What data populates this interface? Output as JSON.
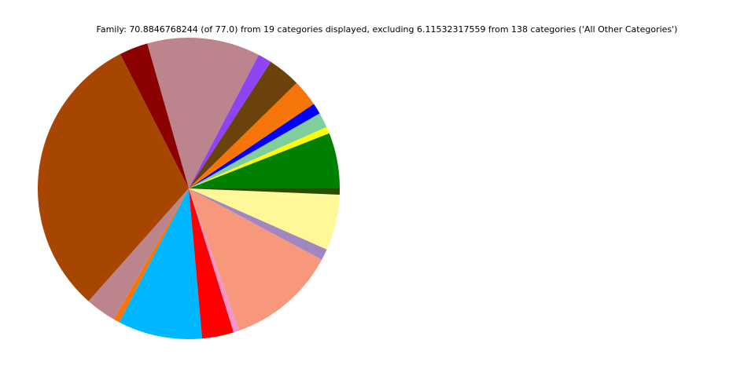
{
  "chart_data": {
    "type": "pie",
    "title": "Family: 70.8846768244 (of 77.0) from 19 categories displayed, excluding 6.11532317559 from 138 categories ('All Other Categories')",
    "values": [
      4.23,
      0.51,
      1.14,
      0.83,
      2.03,
      2.5,
      1.04,
      8.58,
      2.17,
      21.93,
      2.32,
      0.47,
      6.4,
      2.4,
      0.45,
      8.31,
      0.85,
      4.23,
      0.47
    ],
    "colors": [
      "#008000",
      "#ffff00",
      "#80ce9c",
      "#0000ff",
      "#f57508",
      "#6b4209",
      "#8e43f5",
      "#bc848c",
      "#8b0000",
      "#a64600",
      "#bc848c",
      "#f57508",
      "#00b6ff",
      "#ff0000",
      "#f497c8",
      "#f7977b",
      "#a087c0",
      "#fff899",
      "#264d00"
    ]
  }
}
